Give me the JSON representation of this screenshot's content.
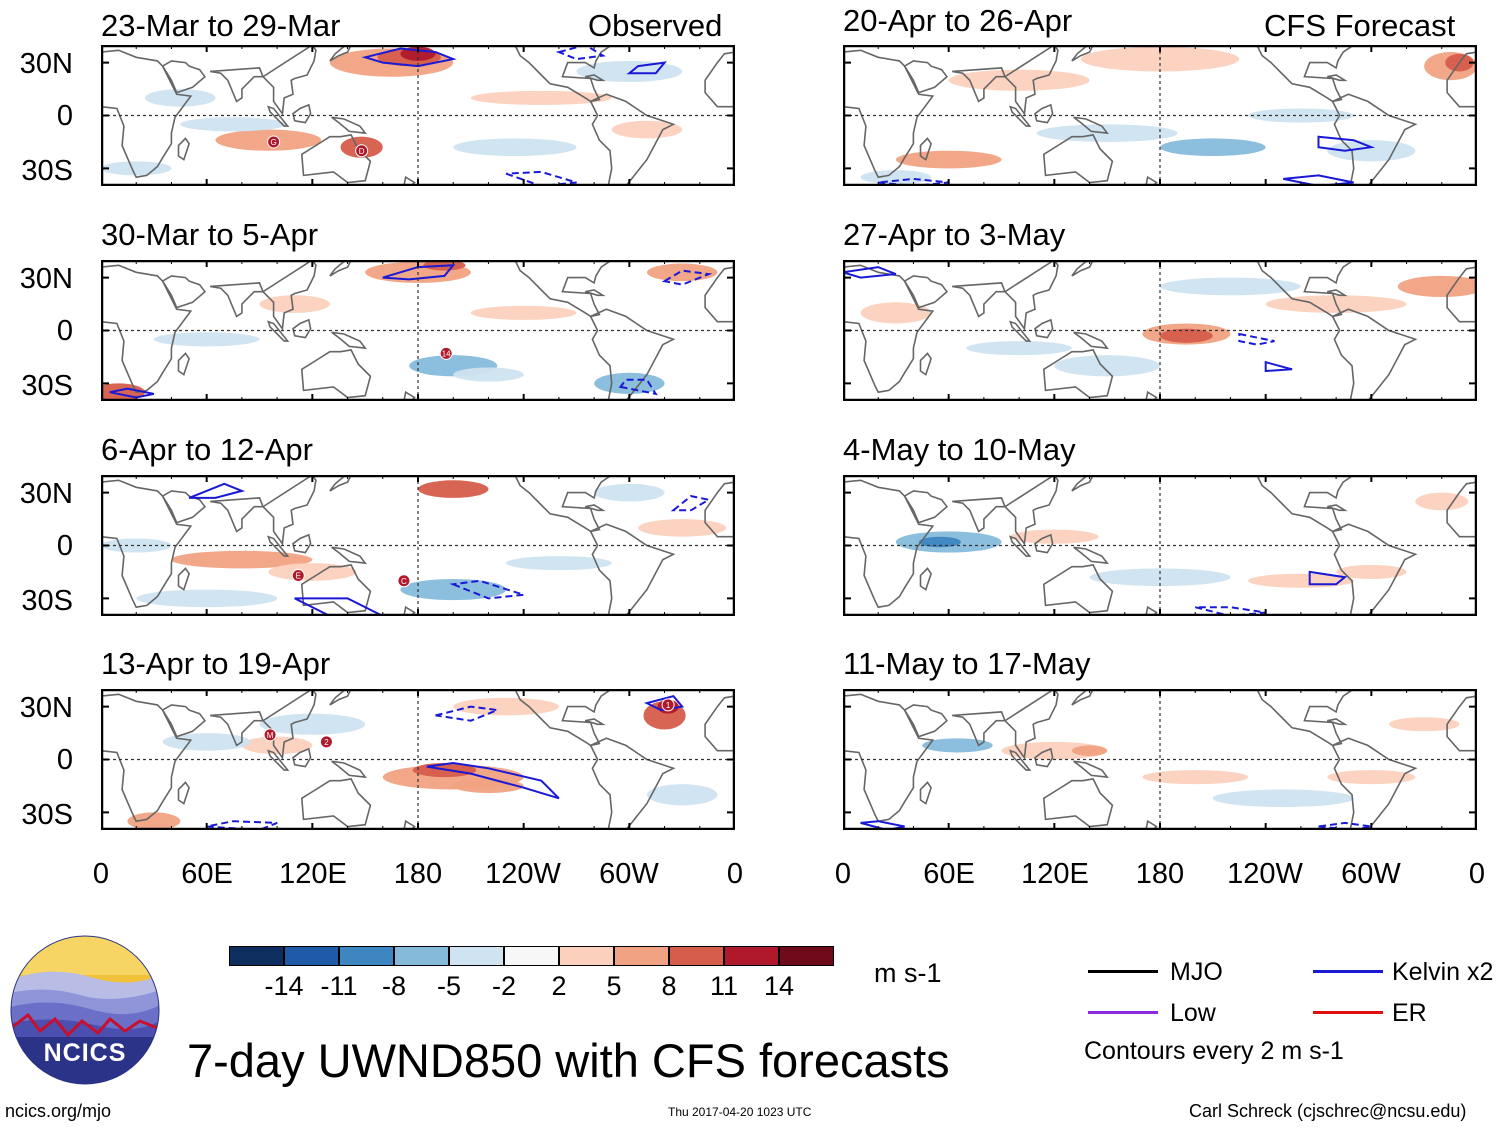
{
  "panels": [
    {
      "period": "23-Mar to 29-Mar",
      "tag": "Observed",
      "storms": [
        "G",
        "D"
      ]
    },
    {
      "period": "30-Mar to 5-Apr",
      "tag": "",
      "storms": [
        "14"
      ]
    },
    {
      "period": "6-Apr to 12-Apr",
      "tag": "",
      "storms": [
        "E",
        "C"
      ]
    },
    {
      "period": "13-Apr to 19-Apr",
      "tag": "",
      "storms": [
        "M",
        "2",
        "1"
      ]
    },
    {
      "period": "20-Apr to 26-Apr",
      "tag": "CFS Forecast",
      "storms": []
    },
    {
      "period": "27-Apr to 3-May",
      "tag": "",
      "storms": []
    },
    {
      "period": "4-May to 10-May",
      "tag": "",
      "storms": []
    },
    {
      "period": "11-May to 17-May",
      "tag": "",
      "storms": []
    }
  ],
  "lat_labels": [
    "30N",
    "0",
    "30S"
  ],
  "lon_labels": [
    "0",
    "60E",
    "120E",
    "180",
    "120W",
    "60W",
    "0"
  ],
  "colorbar": {
    "ticks": [
      "-14",
      "-11",
      "-8",
      "-5",
      "-2",
      "2",
      "5",
      "8",
      "11",
      "14"
    ],
    "units": "m s-1",
    "colors": [
      "#0d2e5e",
      "#1f5aa8",
      "#3d86c2",
      "#86badb",
      "#cfe3f0",
      "#f7f7f7",
      "#fbd1bd",
      "#f0a282",
      "#d65c4b",
      "#b0192b",
      "#6e0a1a"
    ]
  },
  "legend": {
    "items": [
      {
        "label": "MJO",
        "color": "#000000"
      },
      {
        "label": "Kelvin x2",
        "color": "#1a1ad6"
      },
      {
        "label": "Low",
        "color": "#8a2be2"
      },
      {
        "label": "ER",
        "color": "#e01010"
      }
    ],
    "note": "Contours every 2 m s-1"
  },
  "logo": {
    "text": "NCICS"
  },
  "main_title": "7-day UWND850 with CFS forecasts",
  "footer": {
    "left": "ncics.org/mjo",
    "center": "Thu 2017-04-20 1023 UTC",
    "right": "Carl Schreck (cjschrec@ncsu.edu)"
  }
}
